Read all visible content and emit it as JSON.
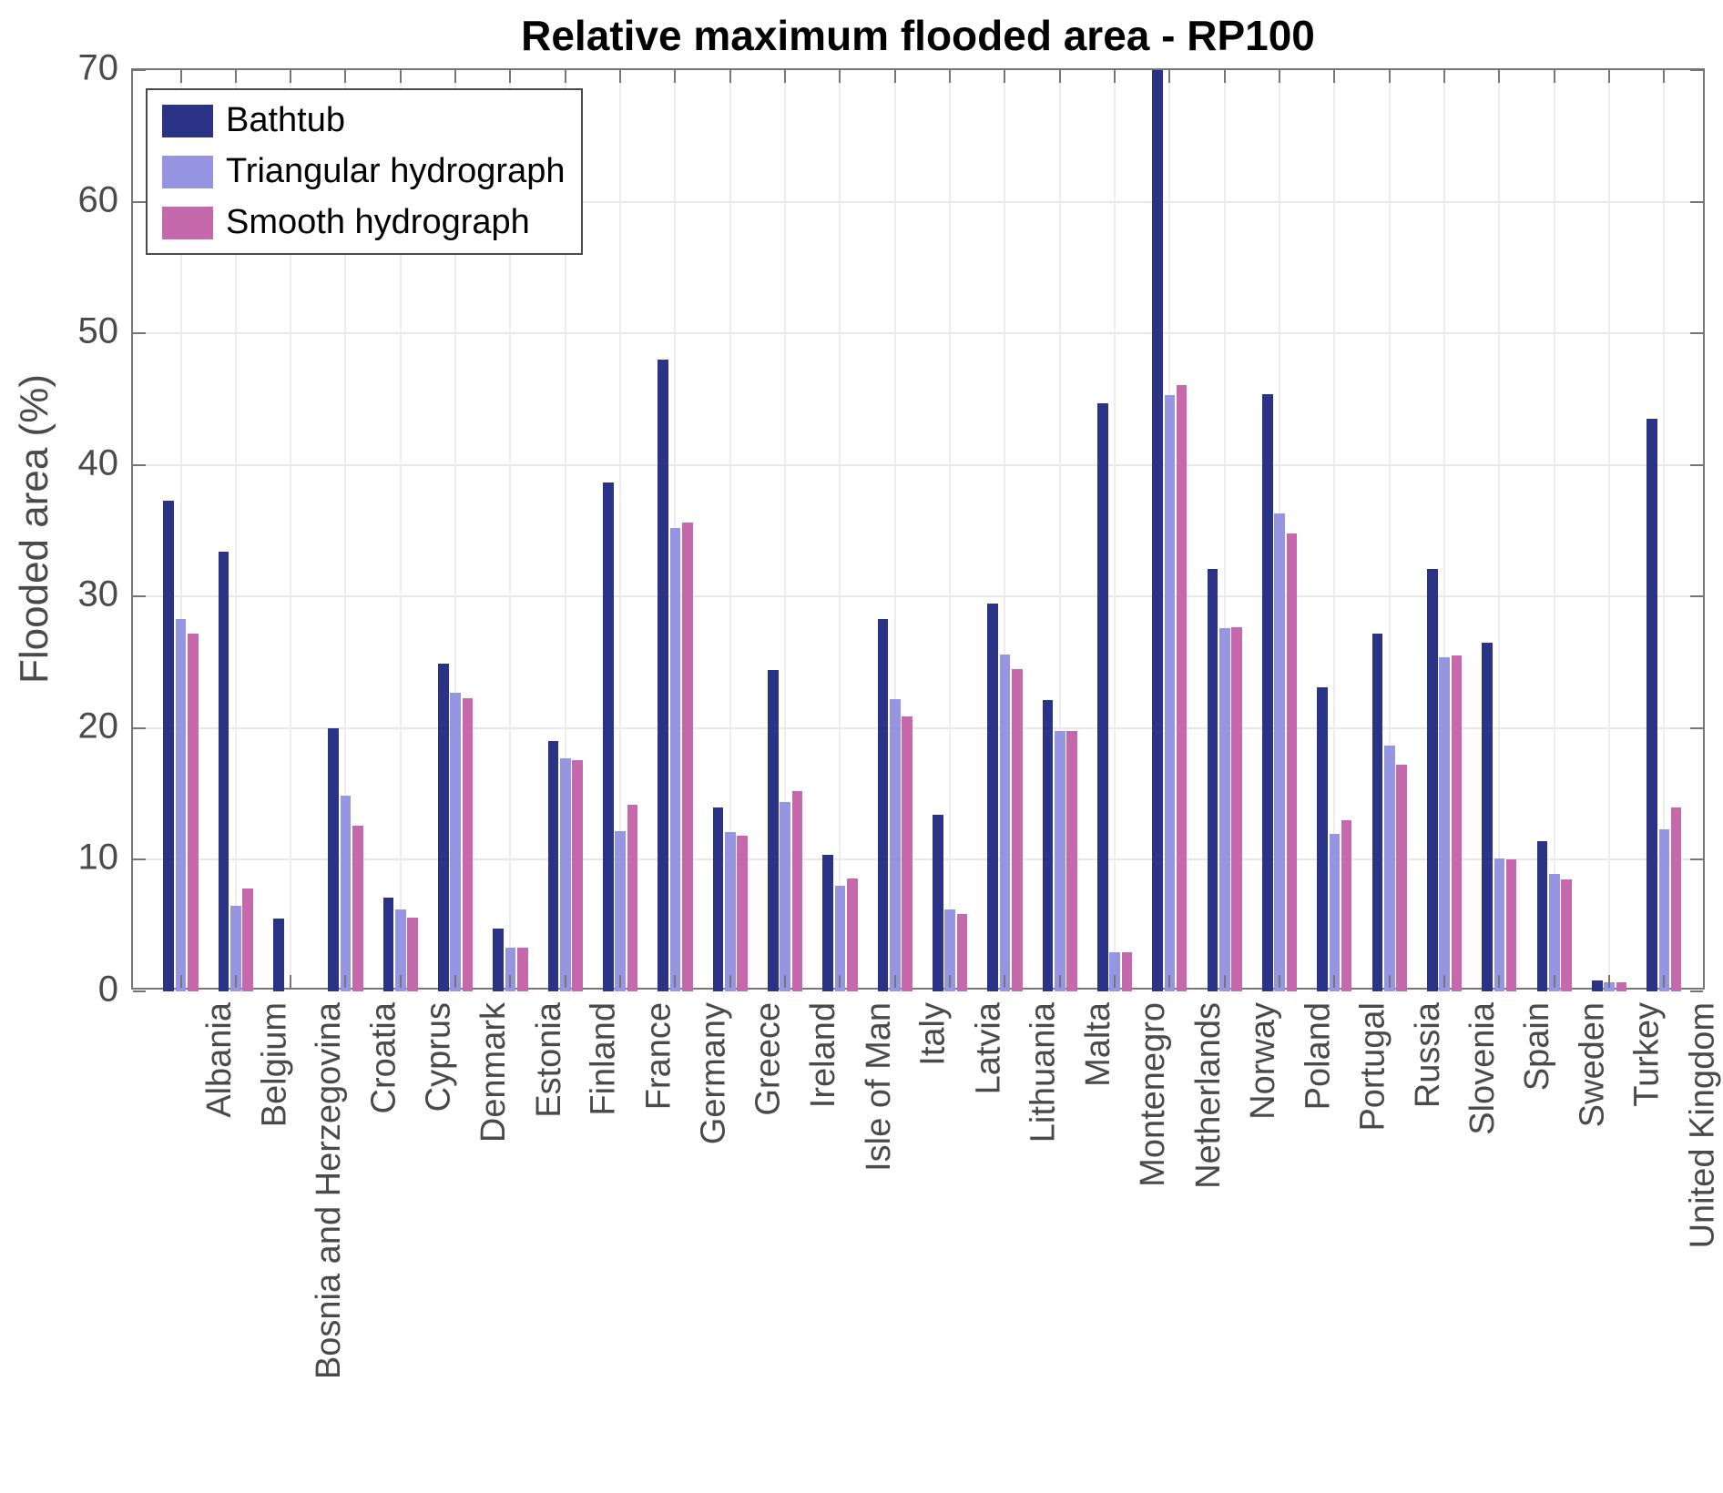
{
  "figure": {
    "title": "Relative maximum flooded area - RP100",
    "ylabel": "Flooded area (%)",
    "colors": {
      "bathtub": "#2a3386",
      "triangular": "#9595e2",
      "smooth": "#c668ac",
      "grid": "#e8e8e8",
      "frame": "#767676",
      "tick_label": "#4a4a4a",
      "title": "#000000",
      "background": "#ffffff"
    }
  },
  "chart_data": {
    "type": "bar",
    "title": "Relative maximum flooded area - RP100",
    "xlabel": "",
    "ylabel": "Flooded area (%)",
    "ylim": [
      0,
      70
    ],
    "yticks": [
      0,
      10,
      20,
      30,
      40,
      50,
      60,
      70
    ],
    "grid": "on",
    "legend_position": "top-left-inside",
    "legend_entries": [
      "Bathtub",
      "Triangular hydrograph",
      "Smooth hydrograph"
    ],
    "categories": [
      "Albania",
      "Belgium",
      "Bosnia and Herzegovina",
      "Croatia",
      "Cyprus",
      "Denmark",
      "Estonia",
      "Finland",
      "France",
      "Germany",
      "Greece",
      "Ireland",
      "Isle of Man",
      "Italy",
      "Latvia",
      "Lithuania",
      "Malta",
      "Montenegro",
      "Netherlands",
      "Norway",
      "Poland",
      "Portugal",
      "Russia",
      "Slovenia",
      "Spain",
      "Sweden",
      "Turkey",
      "United Kingdom"
    ],
    "series": [
      {
        "name": "Bathtub",
        "color": "#2a3386",
        "values": [
          37.3,
          33.4,
          5.5,
          20.0,
          7.1,
          24.9,
          4.8,
          19.0,
          38.7,
          48.0,
          14.0,
          24.4,
          10.4,
          28.3,
          13.4,
          29.5,
          22.1,
          44.7,
          70.0,
          32.1,
          45.4,
          23.1,
          27.2,
          32.1,
          26.5,
          11.4,
          0.8,
          43.5
        ]
      },
      {
        "name": "Triangular hydrograph",
        "color": "#9595e2",
        "values": [
          28.3,
          6.5,
          0,
          14.9,
          6.2,
          22.7,
          3.3,
          17.7,
          12.2,
          35.2,
          12.1,
          14.4,
          8.0,
          22.2,
          6.2,
          25.6,
          19.8,
          3.0,
          45.3,
          27.6,
          36.3,
          12.0,
          18.7,
          25.4,
          10.1,
          8.9,
          0.7,
          12.3
        ]
      },
      {
        "name": "Smooth hydrograph",
        "color": "#c668ac",
        "values": [
          27.2,
          7.8,
          0,
          12.6,
          5.6,
          22.3,
          3.3,
          17.6,
          14.2,
          35.6,
          11.8,
          15.2,
          8.6,
          20.9,
          5.9,
          24.5,
          19.8,
          3.0,
          46.1,
          27.7,
          34.8,
          13.0,
          17.2,
          25.5,
          10.0,
          8.5,
          0.7,
          14.0
        ]
      }
    ],
    "notes": "Netherlands Bathtub bar exceeds the y-axis limit and is clipped at 70%"
  }
}
